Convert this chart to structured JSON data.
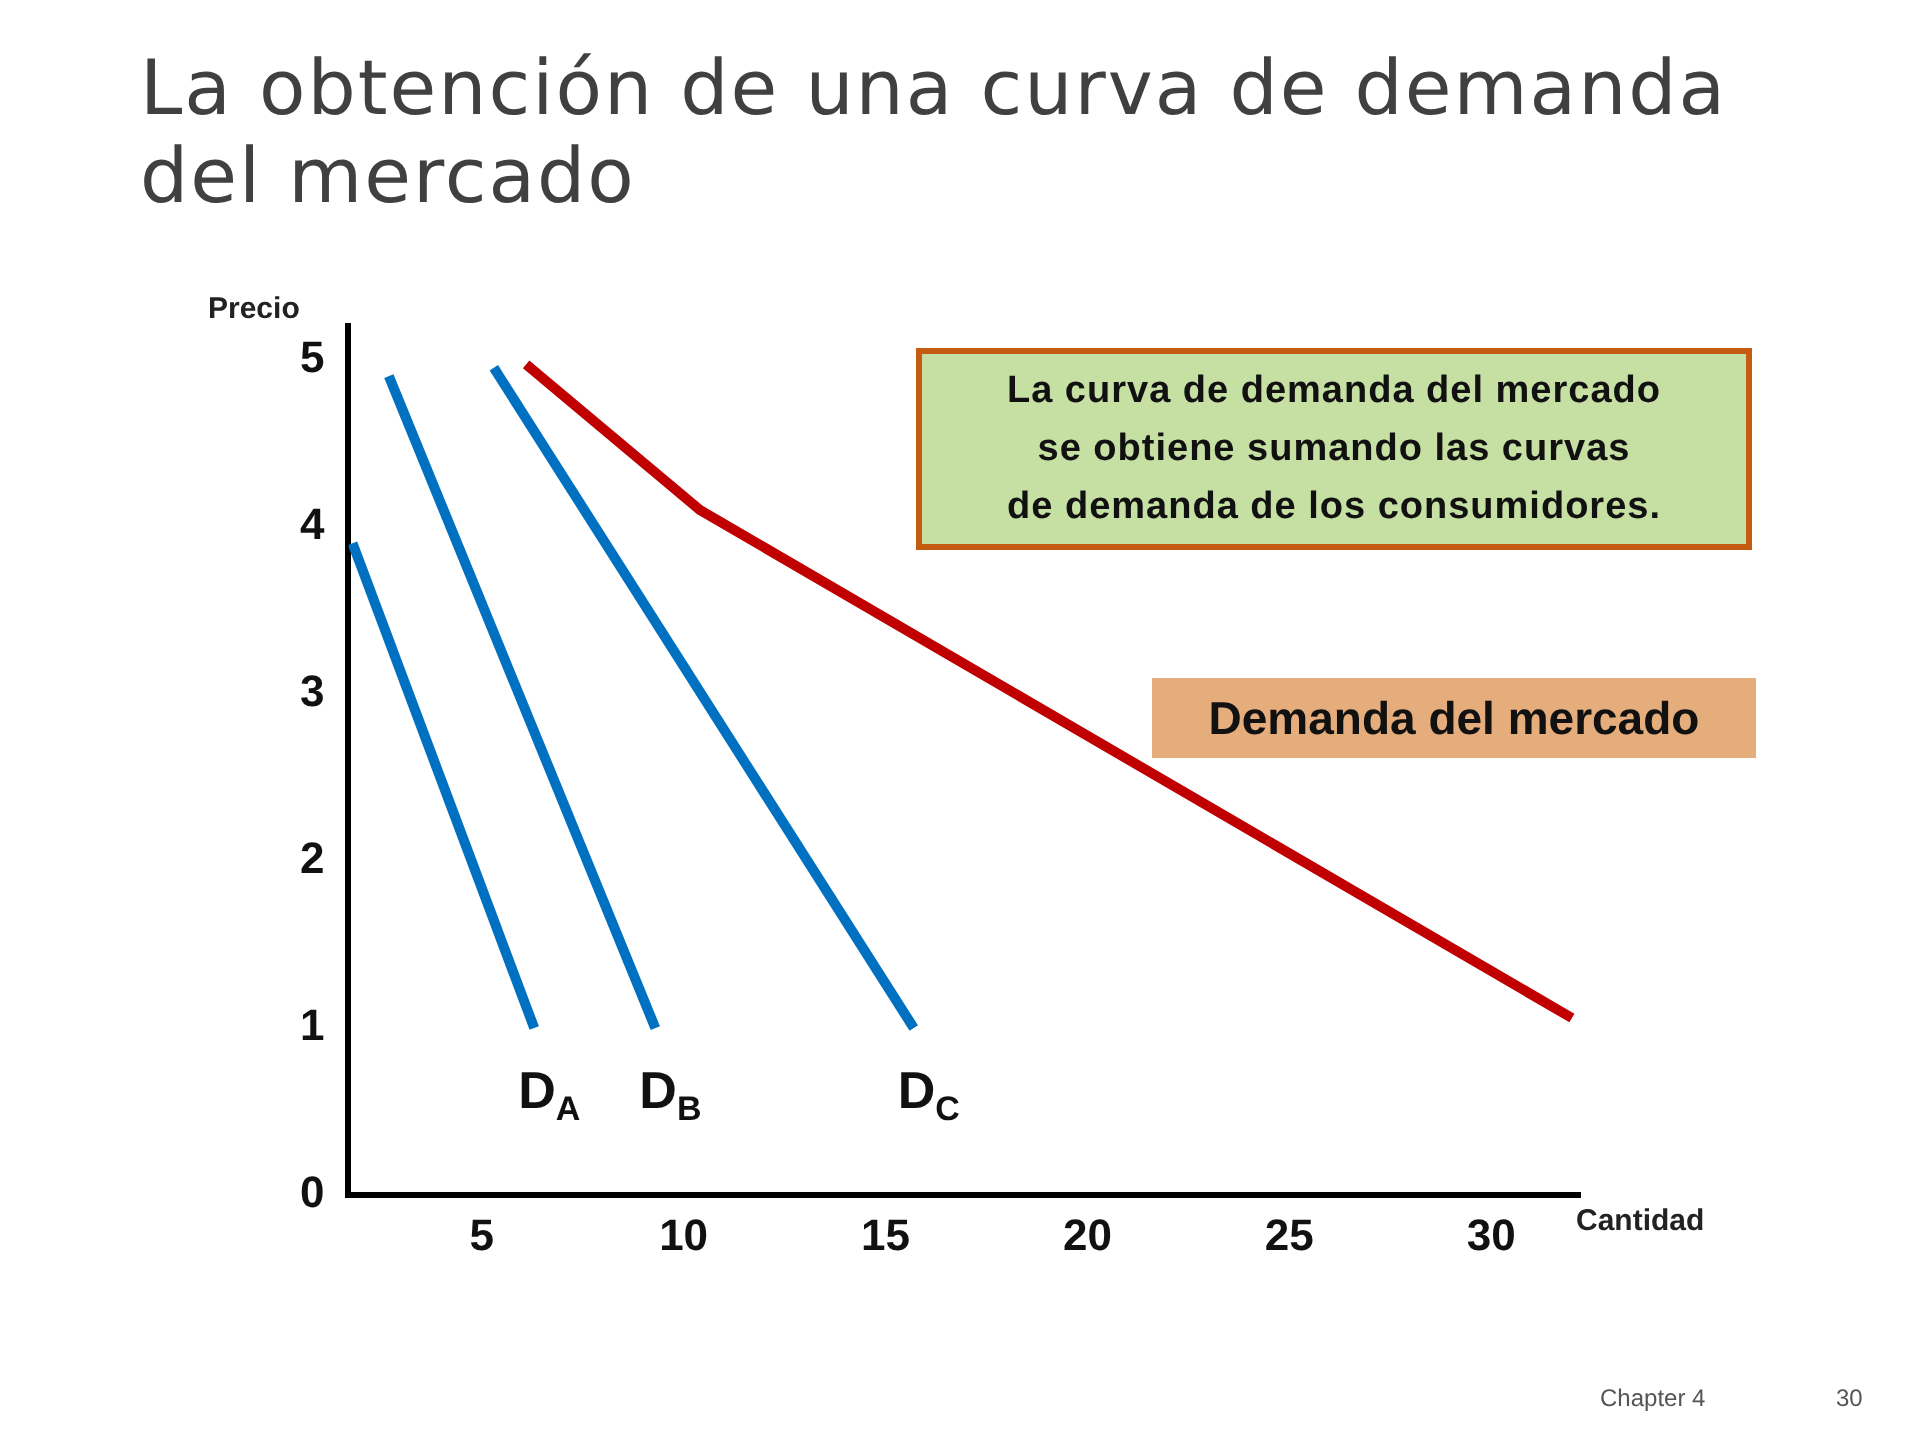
{
  "chart_data": {
    "type": "line",
    "title": "La obtención de una curva de demanda del mercado",
    "xlabel": "Cantidad",
    "ylabel": "Precio",
    "xlim": [
      1.7,
      32.2
    ],
    "xticks": [
      5,
      10,
      15,
      20,
      25,
      30
    ],
    "ylim": [
      0,
      5.2
    ],
    "yticks": [
      0,
      1,
      2,
      3,
      4,
      5
    ],
    "grid": false,
    "legend": false,
    "marker": "none",
    "line_style": "solid",
    "series": [
      {
        "name": "D$_{A}$",
        "color": "#0070c0",
        "x": [
          1.8,
          6.3
        ],
        "values": [
          3.9,
          1
        ]
      },
      {
        "name": "D$_{B}$",
        "color": "#0070c0",
        "x": [
          2.7,
          9.3
        ],
        "values": [
          4.9,
          1
        ]
      },
      {
        "name": "D$_{C}$",
        "color": "#0070c0",
        "x": [
          5.3,
          15.7
        ],
        "values": [
          4.95,
          1
        ]
      },
      {
        "name": "Demanda del mercado",
        "color": "#c00000",
        "x": [
          6.1,
          10.4,
          32
        ],
        "values": [
          4.97,
          4.1,
          1.06
        ]
      }
    ],
    "annotations": [
      "La curva de demanda del mercado\nse obtiene sumando las curvas\nde demanda de los consumidores.",
      "Chapter 4",
      "30"
    ]
  }
}
